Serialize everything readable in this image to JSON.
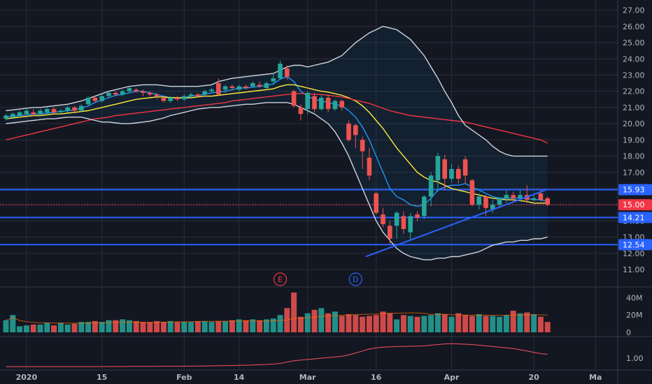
{
  "chart_data": {
    "type": "candlestick",
    "price_axis": {
      "ticks": [
        "27.00",
        "26.00",
        "25.00",
        "24.00",
        "23.00",
        "22.00",
        "21.00",
        "20.00",
        "19.00",
        "18.00",
        "17.00",
        "16.00",
        "15.00",
        "14.00",
        "13.00",
        "12.00",
        "11.00"
      ],
      "range": [
        10.4,
        27.5
      ]
    },
    "x_axis": {
      "labels": [
        {
          "text": "2020",
          "i": 3
        },
        {
          "text": "15",
          "i": 14
        },
        {
          "text": "Feb",
          "i": 26
        },
        {
          "text": "14",
          "i": 34
        },
        {
          "text": "Mar",
          "i": 44
        },
        {
          "text": "16",
          "i": 54
        },
        {
          "text": "Apr",
          "i": 65
        },
        {
          "text": "20",
          "i": 77
        },
        {
          "text": "Ma",
          "i": 86
        }
      ]
    },
    "horizontal_lines": [
      {
        "value": 15.93,
        "label": "15.93",
        "color": "#2962ff",
        "style": "solid"
      },
      {
        "value": 14.21,
        "label": "14.21",
        "color": "#2962ff",
        "style": "solid"
      },
      {
        "value": 12.54,
        "label": "12.54",
        "color": "#2962ff",
        "style": "solid"
      },
      {
        "value": 15.0,
        "label": "15.00",
        "color": "#f23645",
        "style": "dotted"
      }
    ],
    "trendline": {
      "from": {
        "i": 52.5,
        "v": 11.8
      },
      "to": {
        "i": 79,
        "v": 15.95
      },
      "color": "#2962ff"
    },
    "events": [
      {
        "label": "E",
        "i": 40,
        "color": "#f23645"
      },
      {
        "label": "D",
        "i": 51,
        "color": "#2962ff"
      }
    ],
    "candles": [
      [
        20.3,
        20.5,
        20.2,
        20.6
      ],
      [
        20.4,
        20.6,
        20.3,
        20.7
      ],
      [
        20.5,
        20.7,
        20.4,
        20.8
      ],
      [
        20.6,
        20.8,
        20.5,
        20.9
      ],
      [
        20.7,
        20.6,
        20.5,
        20.9
      ],
      [
        20.6,
        20.8,
        20.5,
        20.9
      ],
      [
        20.7,
        20.9,
        20.6,
        21.0
      ],
      [
        20.9,
        20.7,
        20.6,
        21.0
      ],
      [
        20.7,
        20.8,
        20.6,
        20.9
      ],
      [
        20.8,
        21.0,
        20.7,
        21.1
      ],
      [
        21.0,
        20.8,
        20.7,
        21.1
      ],
      [
        20.8,
        21.1,
        20.7,
        21.2
      ],
      [
        21.2,
        21.6,
        21.1,
        21.7
      ],
      [
        21.6,
        21.4,
        21.3,
        21.7
      ],
      [
        21.4,
        21.7,
        21.3,
        21.8
      ],
      [
        21.7,
        21.9,
        21.6,
        22.0
      ],
      [
        21.9,
        21.8,
        21.7,
        22.0
      ],
      [
        21.8,
        22.0,
        21.7,
        22.1
      ],
      [
        22.0,
        22.2,
        21.9,
        22.3
      ],
      [
        22.1,
        22.0,
        21.9,
        22.2
      ],
      [
        22.0,
        21.9,
        21.7,
        22.1
      ],
      [
        21.9,
        21.8,
        21.7,
        22.0
      ],
      [
        21.8,
        21.7,
        21.5,
        21.9
      ],
      [
        21.6,
        21.4,
        21.3,
        21.7
      ],
      [
        21.4,
        21.6,
        21.3,
        21.7
      ],
      [
        21.6,
        21.5,
        21.4,
        21.7
      ],
      [
        21.5,
        21.7,
        21.4,
        21.8
      ],
      [
        21.7,
        21.8,
        21.6,
        21.9
      ],
      [
        21.8,
        21.7,
        21.6,
        21.9
      ],
      [
        21.8,
        22.0,
        21.7,
        22.1
      ],
      [
        22.0,
        22.1,
        21.9,
        22.2
      ],
      [
        22.5,
        21.8,
        21.7,
        22.8
      ],
      [
        22.1,
        22.3,
        21.9,
        22.4
      ],
      [
        22.3,
        22.2,
        22.1,
        22.4
      ],
      [
        22.1,
        22.3,
        22.0,
        22.4
      ],
      [
        22.3,
        22.2,
        22.1,
        22.4
      ],
      [
        22.3,
        22.5,
        22.2,
        22.6
      ],
      [
        22.4,
        22.3,
        22.2,
        22.6
      ],
      [
        22.2,
        22.5,
        22.1,
        22.6
      ],
      [
        22.6,
        22.8,
        22.4,
        23.1
      ],
      [
        22.8,
        23.7,
        22.7,
        23.9
      ],
      [
        23.4,
        22.9,
        22.7,
        23.6
      ],
      [
        22.0,
        21.1,
        21.0,
        22.1
      ],
      [
        21.0,
        20.6,
        20.2,
        21.2
      ],
      [
        20.9,
        21.9,
        20.6,
        22.0
      ],
      [
        21.7,
        20.9,
        20.7,
        21.9
      ],
      [
        20.9,
        21.6,
        20.8,
        21.8
      ],
      [
        21.6,
        20.9,
        20.7,
        21.8
      ],
      [
        20.9,
        21.4,
        20.8,
        21.5
      ],
      [
        21.4,
        21.0,
        20.8,
        21.5
      ],
      [
        20.0,
        19.0,
        18.9,
        20.2
      ],
      [
        19.9,
        19.3,
        18.5,
        20.0
      ],
      [
        19.0,
        18.3,
        17.2,
        19.2
      ],
      [
        17.9,
        16.8,
        16.5,
        18.5
      ],
      [
        15.7,
        14.5,
        14.4,
        15.8
      ],
      [
        14.4,
        13.8,
        13.6,
        14.8
      ],
      [
        13.7,
        12.9,
        12.6,
        14.0
      ],
      [
        13.7,
        14.5,
        12.9,
        14.6
      ],
      [
        14.3,
        13.5,
        13.2,
        14.6
      ],
      [
        13.3,
        14.3,
        12.8,
        14.5
      ],
      [
        14.4,
        14.2,
        14.0,
        14.6
      ],
      [
        14.3,
        15.5,
        14.1,
        15.6
      ],
      [
        15.5,
        16.8,
        14.9,
        17.0
      ],
      [
        16.5,
        18.0,
        15.8,
        18.2
      ],
      [
        17.8,
        16.6,
        15.9,
        18.1
      ],
      [
        16.6,
        17.2,
        16.4,
        17.5
      ],
      [
        17.2,
        16.6,
        16.3,
        17.4
      ],
      [
        17.8,
        16.8,
        16.3,
        18.0
      ],
      [
        16.5,
        15.0,
        14.9,
        16.6
      ],
      [
        15.0,
        15.5,
        14.7,
        15.7
      ],
      [
        15.5,
        14.8,
        14.3,
        15.6
      ],
      [
        14.7,
        15.0,
        14.5,
        15.3
      ],
      [
        15.0,
        15.4,
        14.8,
        15.5
      ],
      [
        15.4,
        15.6,
        15.1,
        15.9
      ],
      [
        15.6,
        15.4,
        15.2,
        15.8
      ],
      [
        15.4,
        15.6,
        15.2,
        15.9
      ],
      [
        15.6,
        15.3,
        15.1,
        16.2
      ],
      [
        15.3,
        15.4,
        15.2,
        15.7
      ],
      [
        15.7,
        15.3,
        15.2,
        15.9
      ],
      [
        15.4,
        15.0,
        14.9,
        15.5
      ]
    ],
    "volume_axis": {
      "ticks": [
        "40M",
        "20M",
        "0"
      ],
      "max": 46
    },
    "volume": [
      14,
      20,
      7,
      8,
      9,
      9,
      11,
      8,
      11,
      9,
      10,
      12,
      12,
      13,
      12,
      14,
      14,
      15,
      14,
      13,
      12,
      12,
      13,
      12,
      13,
      12,
      12,
      12,
      13,
      13,
      12,
      13,
      13,
      14,
      15,
      14,
      15,
      14,
      15,
      16,
      20,
      28,
      46,
      18,
      22,
      26,
      28,
      22,
      24,
      19,
      21,
      20,
      18,
      19,
      20,
      24,
      22,
      15,
      20,
      19,
      18,
      19,
      20,
      22,
      21,
      18,
      22,
      20,
      19,
      21,
      19,
      19,
      18,
      20,
      25,
      22,
      23,
      21,
      18,
      12
    ],
    "indicator_axis": {
      "ticks": [
        "1.00"
      ],
      "range": [
        0.25,
        2.4
      ]
    },
    "series": [
      {
        "name": "",
        "color": "#2196f3",
        "values": [
          20.4,
          20.45,
          20.5,
          20.55,
          20.6,
          20.6,
          20.65,
          20.7,
          20.75,
          20.8,
          20.85,
          20.95,
          21.1,
          21.3,
          21.45,
          21.6,
          21.75,
          21.8,
          21.9,
          22.0,
          22.0,
          21.9,
          21.8,
          21.7,
          21.6,
          21.6,
          21.6,
          21.7,
          21.75,
          21.8,
          21.9,
          21.95,
          22.0,
          22.1,
          22.2,
          22.2,
          22.25,
          22.3,
          22.35,
          22.45,
          22.75,
          22.9,
          22.6,
          22.0,
          21.7,
          21.5,
          21.4,
          21.3,
          21.2,
          21.1,
          20.8,
          20.4,
          19.8,
          19.0,
          18.0,
          17.0,
          16.0,
          15.5,
          15.3,
          15.0,
          14.9,
          15.0,
          15.4,
          15.9,
          16.1,
          16.2,
          16.2,
          16.3,
          16.1,
          15.9,
          15.7,
          15.5,
          15.4,
          15.4,
          15.4,
          15.4,
          15.4,
          15.3,
          15.3,
          15.2
        ]
      },
      {
        "name": "",
        "color": "#ffeb3b",
        "values": [
          20.3,
          20.35,
          20.4,
          20.45,
          20.5,
          20.5,
          20.55,
          20.6,
          20.6,
          20.65,
          20.7,
          20.75,
          20.8,
          20.9,
          21.0,
          21.1,
          21.2,
          21.3,
          21.4,
          21.5,
          21.55,
          21.6,
          21.65,
          21.65,
          21.6,
          21.6,
          21.6,
          21.6,
          21.65,
          21.7,
          21.7,
          21.75,
          21.8,
          21.85,
          21.9,
          21.95,
          22.0,
          22.05,
          22.1,
          22.15,
          22.3,
          22.4,
          22.4,
          22.3,
          22.2,
          22.1,
          22.0,
          21.95,
          21.85,
          21.75,
          21.6,
          21.4,
          21.1,
          20.7,
          20.2,
          19.7,
          19.1,
          18.5,
          18.0,
          17.5,
          17.0,
          16.7,
          16.5,
          16.4,
          16.2,
          16.0,
          15.9,
          15.8,
          15.7,
          15.6,
          15.5,
          15.4,
          15.35,
          15.3,
          15.3,
          15.25,
          15.2,
          15.1,
          15.1,
          15.1
        ]
      },
      {
        "name": "",
        "color": "#f23645",
        "values": [
          19.0,
          19.1,
          19.2,
          19.3,
          19.4,
          19.5,
          19.6,
          19.7,
          19.8,
          19.9,
          20.0,
          20.1,
          20.2,
          20.3,
          20.35,
          20.4,
          20.5,
          20.55,
          20.6,
          20.65,
          20.7,
          20.75,
          20.8,
          20.85,
          20.9,
          20.95,
          21.0,
          21.05,
          21.1,
          21.15,
          21.2,
          21.25,
          21.3,
          21.4,
          21.45,
          21.5,
          21.55,
          21.6,
          21.65,
          21.7,
          21.75,
          21.8,
          21.85,
          21.85,
          21.85,
          21.8,
          21.8,
          21.75,
          21.7,
          21.65,
          21.55,
          21.45,
          21.35,
          21.25,
          21.1,
          20.95,
          20.8,
          20.7,
          20.6,
          20.5,
          20.45,
          20.4,
          20.35,
          20.3,
          20.25,
          20.2,
          20.15,
          20.1,
          20.0,
          19.9,
          19.8,
          19.7,
          19.6,
          19.5,
          19.4,
          19.3,
          19.2,
          19.1,
          19.0,
          18.8
        ]
      },
      {
        "name": "",
        "color": "#d1d4dc",
        "values": [
          20.8,
          20.85,
          20.9,
          20.95,
          21.0,
          21.0,
          21.05,
          21.1,
          21.15,
          21.2,
          21.3,
          21.4,
          21.55,
          21.7,
          21.85,
          22.0,
          22.1,
          22.2,
          22.3,
          22.35,
          22.4,
          22.4,
          22.4,
          22.35,
          22.3,
          22.3,
          22.3,
          22.3,
          22.3,
          22.35,
          22.4,
          22.6,
          22.7,
          22.8,
          22.85,
          22.9,
          22.95,
          23.0,
          23.05,
          23.1,
          23.3,
          23.5,
          23.6,
          23.6,
          23.5,
          23.6,
          23.7,
          23.8,
          24.0,
          24.2,
          24.6,
          25.0,
          25.3,
          25.6,
          25.8,
          26.0,
          25.9,
          25.8,
          25.5,
          25.2,
          24.7,
          24.2,
          23.5,
          22.8,
          22.0,
          21.3,
          20.5,
          19.9,
          19.6,
          19.3,
          19.0,
          18.6,
          18.3,
          18.1,
          18.0,
          18.0,
          18.0,
          18.0,
          18.0,
          18.0
        ]
      },
      {
        "name": "",
        "color": "#d1d4dc",
        "values": [
          20.0,
          20.05,
          20.1,
          20.15,
          20.2,
          20.25,
          20.3,
          20.3,
          20.35,
          20.4,
          20.4,
          20.4,
          20.3,
          20.2,
          20.1,
          20.1,
          20.05,
          20.0,
          20.0,
          20.05,
          20.1,
          20.15,
          20.25,
          20.35,
          20.5,
          20.6,
          20.7,
          20.8,
          20.9,
          20.95,
          21.0,
          21.0,
          21.05,
          21.1,
          21.15,
          21.2,
          21.2,
          21.25,
          21.3,
          21.3,
          21.3,
          21.3,
          21.2,
          21.0,
          20.8,
          20.6,
          20.3,
          20.0,
          19.5,
          18.8,
          18.0,
          17.0,
          16.0,
          15.0,
          14.0,
          13.3,
          12.8,
          12.3,
          12.0,
          11.8,
          11.7,
          11.6,
          11.6,
          11.7,
          11.7,
          11.8,
          11.8,
          11.9,
          12.0,
          12.1,
          12.3,
          12.5,
          12.6,
          12.7,
          12.7,
          12.8,
          12.8,
          12.9,
          12.9,
          13.0
        ]
      },
      {
        "name": "",
        "color": "#f7525f",
        "pane": "indicator",
        "values": [
          0.35,
          0.35,
          0.35,
          0.35,
          0.35,
          0.35,
          0.35,
          0.35,
          0.35,
          0.35,
          0.35,
          0.35,
          0.35,
          0.35,
          0.36,
          0.36,
          0.36,
          0.36,
          0.37,
          0.37,
          0.37,
          0.37,
          0.38,
          0.38,
          0.38,
          0.38,
          0.39,
          0.39,
          0.4,
          0.4,
          0.41,
          0.42,
          0.43,
          0.44,
          0.45,
          0.46,
          0.48,
          0.5,
          0.52,
          0.55,
          0.6,
          0.7,
          0.8,
          0.85,
          0.9,
          0.95,
          1.0,
          1.05,
          1.1,
          1.15,
          1.25,
          1.4,
          1.55,
          1.7,
          1.8,
          1.85,
          1.88,
          1.9,
          1.9,
          1.92,
          1.93,
          1.95,
          2.0,
          2.05,
          2.1,
          2.12,
          2.1,
          2.08,
          2.05,
          2.0,
          1.95,
          1.9,
          1.85,
          1.8,
          1.75,
          1.65,
          1.55,
          1.45,
          1.35,
          1.3
        ]
      }
    ],
    "colors": {
      "up": "#26a69a",
      "down": "#ef5350",
      "grid": "#2a2e39",
      "background": "#131722"
    }
  }
}
